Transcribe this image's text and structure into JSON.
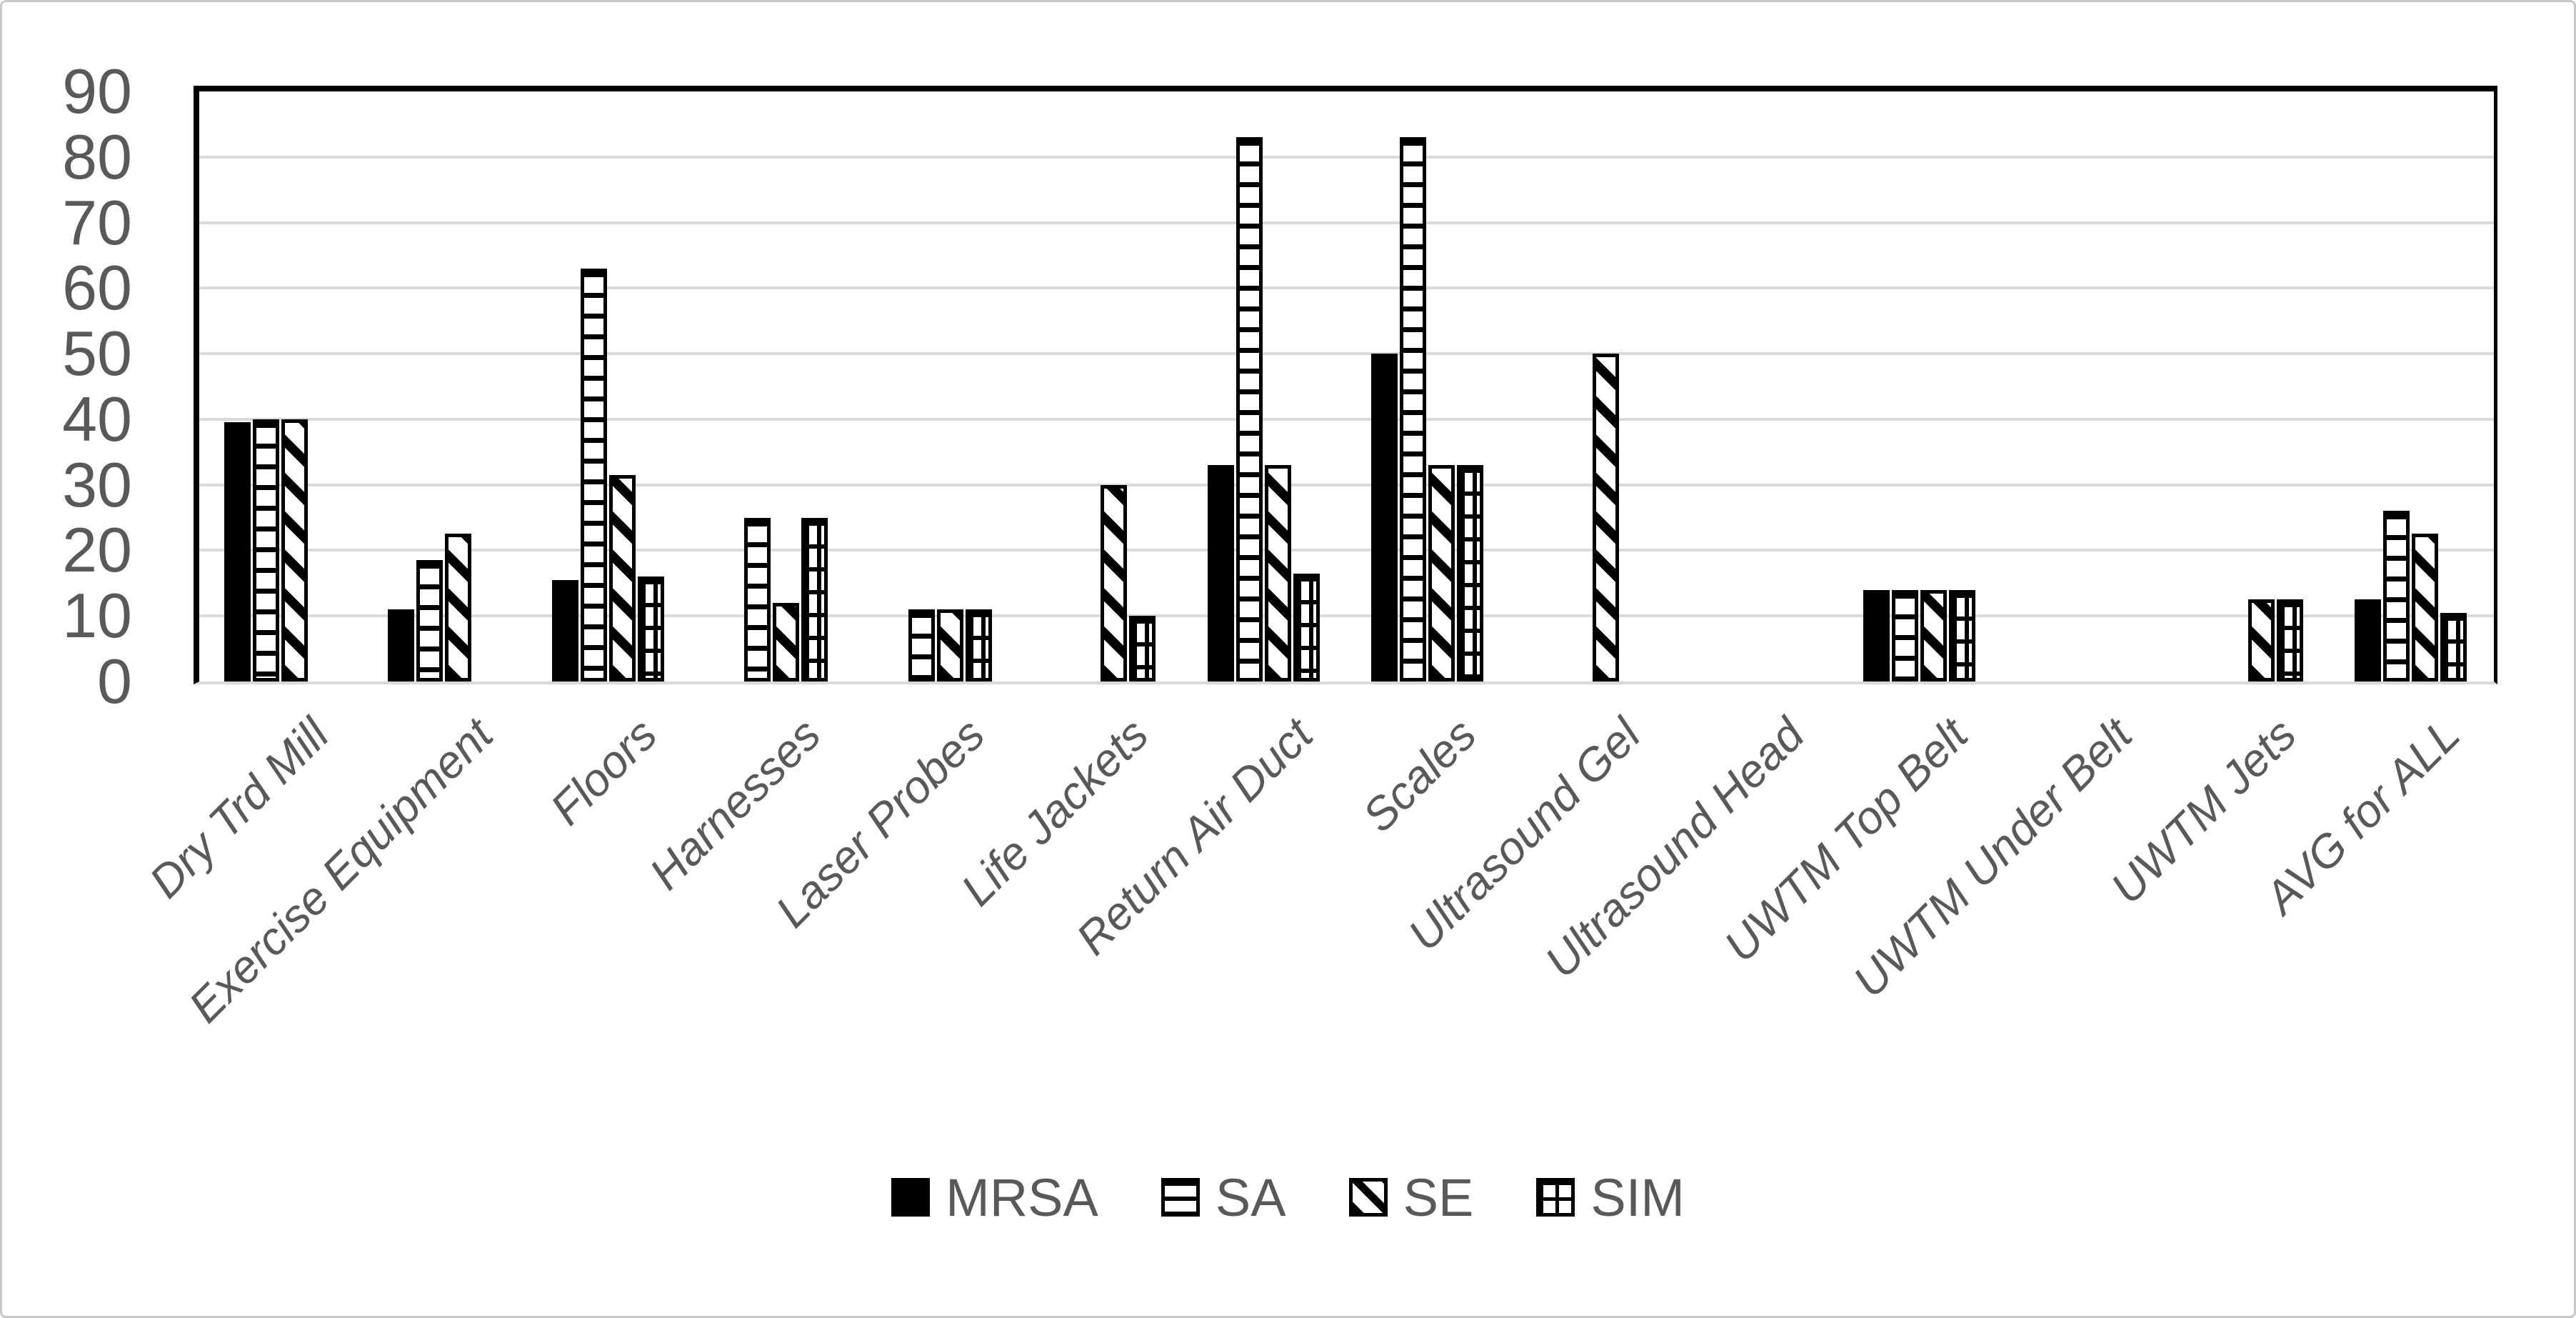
{
  "figure": {
    "background": "#ffffff",
    "border_color": "#c9c9c9",
    "text_color": "#595959",
    "grid_color": "#d9d9d9",
    "bar_outline_color": "#000000"
  },
  "chart_data": {
    "type": "bar",
    "title": "",
    "xlabel": "",
    "ylabel": "",
    "ylim": [
      0,
      90
    ],
    "ytick_step": 10,
    "yticks": [
      0,
      10,
      20,
      30,
      40,
      50,
      60,
      70,
      80,
      90
    ],
    "grid": "horizontal",
    "legend_position": "bottom-center",
    "categories": [
      "Dry Trd Mill",
      "Exercise Equipment",
      "Floors",
      "Harnesses",
      "Laser Probes",
      "Life Jackets",
      "Return Air Duct",
      "Scales",
      "Ultrasound Gel",
      "Ultrasound Head",
      "UWTM Top Belt",
      "UWTM Under Belt",
      "UWTM Jets",
      "AVG for ALL"
    ],
    "series": [
      {
        "name": "MRSA",
        "pattern": "solid-black",
        "values": [
          39.5,
          11,
          15.5,
          0,
          0,
          0,
          33,
          50,
          0,
          0,
          14,
          0,
          0,
          12.5
        ]
      },
      {
        "name": "SA",
        "pattern": "horizontal-stripes",
        "values": [
          40,
          18.5,
          63,
          25,
          11,
          0,
          83,
          83,
          0,
          0,
          14,
          0,
          0,
          26
        ]
      },
      {
        "name": "SE",
        "pattern": "diagonal-stripes",
        "values": [
          40,
          22.5,
          31.5,
          12,
          11,
          30,
          33,
          33,
          50,
          0,
          14,
          0,
          12.5,
          22.5
        ]
      },
      {
        "name": "SIM",
        "pattern": "grid",
        "values": [
          0,
          0,
          16,
          25,
          11,
          10,
          16.5,
          33,
          0,
          0,
          14,
          0,
          12.5,
          10.5
        ]
      }
    ]
  }
}
